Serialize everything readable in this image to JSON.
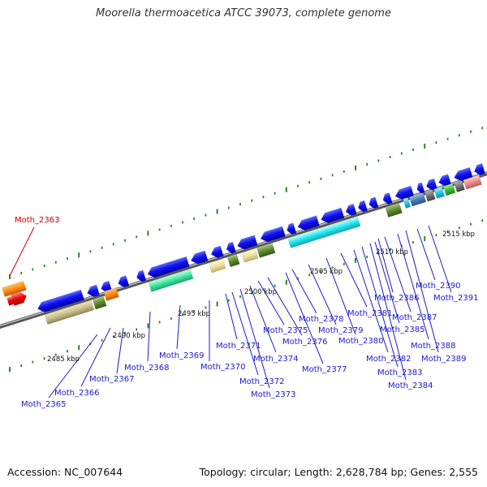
{
  "title": "Moorella thermoacetica ATCC 39073, complete genome",
  "footer": {
    "accession": "Accession: NC_007644",
    "topology": "Topology: circular; Length: 2,628,784 bp; Genes: 2,555"
  },
  "colors": {
    "backbone": "#8c8c8c",
    "tick": "#228b22",
    "label_default": "#1a1acc",
    "label_red": "#cc0000",
    "line_default": "#1a1acc",
    "line_red": "#cc0000"
  },
  "kbp_ticks": [
    "2485 kbp",
    "2490 kbp",
    "2495 kbp",
    "2500 kbp",
    "2505 kbp",
    "2510 kbp",
    "2515 kbp"
  ],
  "genes": [
    {
      "label": "Moth_2363",
      "color": "red"
    },
    {
      "label": "Moth_2365",
      "color": "blue"
    },
    {
      "label": "Moth_2366",
      "color": "blue"
    },
    {
      "label": "Moth_2367",
      "color": "blue"
    },
    {
      "label": "Moth_2368",
      "color": "blue"
    },
    {
      "label": "Moth_2369",
      "color": "blue"
    },
    {
      "label": "Moth_2370",
      "color": "blue"
    },
    {
      "label": "Moth_2371",
      "color": "blue"
    },
    {
      "label": "Moth_2372",
      "color": "blue"
    },
    {
      "label": "Moth_2373",
      "color": "blue"
    },
    {
      "label": "Moth_2374",
      "color": "blue"
    },
    {
      "label": "Moth_2375",
      "color": "blue"
    },
    {
      "label": "Moth_2376",
      "color": "blue"
    },
    {
      "label": "Moth_2377",
      "color": "blue"
    },
    {
      "label": "Moth_2378",
      "color": "blue"
    },
    {
      "label": "Moth_2379",
      "color": "blue"
    },
    {
      "label": "Moth_2380",
      "color": "blue"
    },
    {
      "label": "Moth_2381",
      "color": "blue"
    },
    {
      "label": "Moth_2382",
      "color": "blue"
    },
    {
      "label": "Moth_2383",
      "color": "blue"
    },
    {
      "label": "Moth_2384",
      "color": "blue"
    },
    {
      "label": "Moth_2385",
      "color": "blue"
    },
    {
      "label": "Moth_2386",
      "color": "blue"
    },
    {
      "label": "Moth_2387",
      "color": "blue"
    },
    {
      "label": "Moth_2388",
      "color": "blue"
    },
    {
      "label": "Moth_2389",
      "color": "blue"
    },
    {
      "label": "Moth_2390",
      "color": "blue"
    },
    {
      "label": "Moth_2391",
      "color": "blue"
    }
  ]
}
